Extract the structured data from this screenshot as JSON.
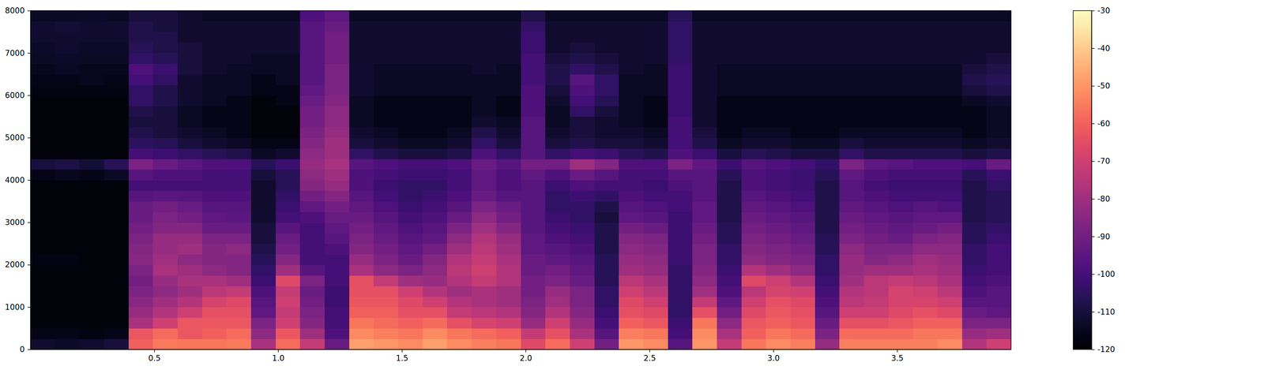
{
  "chart_data": {
    "type": "heatmap",
    "color": "magma",
    "xlim": [
      0,
      3.96
    ],
    "ylim": [
      0,
      8000
    ],
    "xticks": [
      0.5,
      {
        "value": 1,
        "label": "1.0"
      },
      1.5,
      {
        "value": 2,
        "label": "2.0"
      },
      2.5,
      {
        "value": 3,
        "label": "3.0"
      },
      3.5
    ],
    "yticks": [
      0,
      1000,
      2000,
      3000,
      4000,
      5000,
      6000,
      7000,
      8000
    ],
    "colorbar": {
      "range": [
        -120,
        -30
      ],
      "ticks": [
        -120,
        -110,
        -100,
        -90,
        -80,
        -70,
        -60,
        -50,
        -40,
        -30
      ]
    },
    "x": [
      0.0495,
      0.1485,
      0.2475,
      0.3465,
      0.4455,
      0.5445,
      0.6435,
      0.7425,
      0.8415,
      0.9405,
      1.0395,
      1.1385,
      1.2375,
      1.3365,
      1.4355,
      1.5345,
      1.6335,
      1.7325,
      1.8315,
      1.9305,
      2.0295,
      2.1285,
      2.2275,
      2.3265,
      2.4255,
      2.5245,
      2.6235,
      2.7225,
      2.8215,
      2.9205,
      3.0195,
      3.1185,
      3.2175,
      3.3165,
      3.4155,
      3.5145,
      3.6135,
      3.7125,
      3.8115,
      3.9105
    ],
    "y": [
      125,
      375,
      625,
      875,
      1125,
      1375,
      1625,
      1875,
      2125,
      2375,
      2625,
      2875,
      3125,
      3375,
      3625,
      3875,
      4125,
      4375,
      4625,
      4875,
      5125,
      5375,
      5625,
      5875,
      6125,
      6375,
      6625,
      6875,
      7125,
      7375,
      7625,
      7875
    ],
    "z": [
      [
        -112,
        -116,
        -118,
        -118,
        -118,
        -118,
        -118,
        -118,
        -117,
        -118,
        -118,
        -118,
        -118,
        -118,
        -118,
        -118,
        -116,
        -110,
        -118,
        -118,
        -118,
        -118,
        -118,
        -118,
        -117,
        -116,
        -115,
        -114,
        -113,
        -112,
        -112,
        -114
      ],
      [
        -113,
        -116,
        -118,
        -118,
        -118,
        -118,
        -118,
        -118,
        -117,
        -118,
        -118,
        -118,
        -118,
        -118,
        -118,
        -118,
        -115,
        -109,
        -118,
        -118,
        -118,
        -118,
        -118,
        -118,
        -117,
        -116,
        -114,
        -113,
        -112,
        -112,
        -111,
        -114
      ],
      [
        -112,
        -117,
        -118,
        -118,
        -118,
        -118,
        -118,
        -118,
        -118,
        -118,
        -118,
        -118,
        -118,
        -118,
        -118,
        -118,
        -116,
        -111,
        -118,
        -118,
        -118,
        -118,
        -118,
        -118,
        -117,
        -115,
        -115,
        -114,
        -113,
        -112,
        -112,
        -113
      ],
      [
        -110,
        -116,
        -118,
        -118,
        -118,
        -118,
        -118,
        -118,
        -118,
        -118,
        -118,
        -118,
        -118,
        -118,
        -118,
        -118,
        -114,
        -106,
        -118,
        -118,
        -118,
        -118,
        -118,
        -118,
        -117,
        -116,
        -115,
        -114,
        -113,
        -112,
        -112,
        -114
      ],
      [
        -60,
        -62,
        -78,
        -82,
        -85,
        -88,
        -90,
        -88,
        -85,
        -86,
        -88,
        -90,
        -92,
        -92,
        -96,
        -100,
        -96,
        -88,
        -100,
        -105,
        -108,
        -110,
        -108,
        -104,
        -104,
        -100,
        -98,
        -104,
        -106,
        -108,
        -108,
        -110
      ],
      [
        -55,
        -58,
        -70,
        -76,
        -80,
        -84,
        -82,
        -78,
        -80,
        -82,
        -82,
        -86,
        -88,
        -90,
        -95,
        -100,
        -98,
        -92,
        -102,
        -106,
        -110,
        -110,
        -110,
        -108,
        -108,
        -104,
        -102,
        -106,
        -108,
        -108,
        -110,
        -110
      ],
      [
        -56,
        -62,
        -62,
        -70,
        -76,
        -80,
        -78,
        -80,
        -84,
        -80,
        -82,
        -86,
        -90,
        -92,
        -96,
        -100,
        -98,
        -95,
        -104,
        -110,
        -112,
        -114,
        -114,
        -112,
        -112,
        -112,
        -110,
        -110,
        -110,
        -112,
        -112,
        -112
      ],
      [
        -56,
        -60,
        -62,
        -64,
        -68,
        -74,
        -78,
        -84,
        -86,
        -86,
        -88,
        -92,
        -94,
        -96,
        -98,
        -100,
        -100,
        -98,
        -106,
        -112,
        -114,
        -116,
        -116,
        -114,
        -114,
        -114,
        -112,
        -112,
        -112,
        -112,
        -112,
        -114
      ],
      [
        -55,
        -58,
        -62,
        -64,
        -66,
        -72,
        -80,
        -86,
        -86,
        -84,
        -88,
        -92,
        -95,
        -96,
        -98,
        -100,
        -100,
        -98,
        -108,
        -114,
        -116,
        -116,
        -116,
        -116,
        -114,
        -114,
        -114,
        -112,
        -112,
        -112,
        -112,
        -114
      ],
      [
        -78,
        -84,
        -88,
        -94,
        -96,
        -98,
        -102,
        -104,
        -106,
        -108,
        -110,
        -110,
        -112,
        -112,
        -112,
        -112,
        -110,
        -106,
        -114,
        -116,
        -118,
        -118,
        -118,
        -118,
        -116,
        -116,
        -114,
        -114,
        -112,
        -112,
        -112,
        -114
      ],
      [
        -58,
        -62,
        -70,
        -72,
        -70,
        -72,
        -66,
        -80,
        -86,
        -90,
        -92,
        -96,
        -100,
        -102,
        -104,
        -106,
        -106,
        -102,
        -112,
        -116,
        -118,
        -118,
        -118,
        -116,
        -116,
        -114,
        -114,
        -114,
        -112,
        -112,
        -112,
        -114
      ],
      [
        -72,
        -80,
        -86,
        -88,
        -90,
        -92,
        -88,
        -96,
        -100,
        -100,
        -100,
        -100,
        -98,
        -94,
        -90,
        -86,
        -84,
        -82,
        -84,
        -86,
        -88,
        -90,
        -90,
        -92,
        -94,
        -96,
        -96,
        -96,
        -96,
        -96,
        -96,
        -98
      ],
      [
        -92,
        -98,
        -100,
        -100,
        -102,
        -102,
        -100,
        -100,
        -100,
        -98,
        -96,
        -94,
        -92,
        -90,
        -86,
        -82,
        -80,
        -78,
        -80,
        -80,
        -82,
        -84,
        -84,
        -86,
        -88,
        -88,
        -88,
        -90,
        -90,
        -90,
        -92,
        -94
      ],
      [
        -48,
        -52,
        -56,
        -60,
        -62,
        -64,
        -64,
        -78,
        -82,
        -86,
        -88,
        -90,
        -92,
        -94,
        -96,
        -98,
        -98,
        -96,
        -104,
        -110,
        -112,
        -114,
        -114,
        -114,
        -112,
        -112,
        -112,
        -112,
        -112,
        -112,
        -112,
        -114
      ],
      [
        -50,
        -54,
        -58,
        -60,
        -62,
        -64,
        -72,
        -84,
        -88,
        -90,
        -92,
        -94,
        -96,
        -98,
        -100,
        -102,
        -100,
        -98,
        -108,
        -112,
        -114,
        -116,
        -116,
        -116,
        -114,
        -114,
        -114,
        -112,
        -112,
        -112,
        -112,
        -114
      ],
      [
        -52,
        -56,
        -60,
        -64,
        -66,
        -70,
        -80,
        -88,
        -92,
        -94,
        -96,
        -98,
        -100,
        -102,
        -104,
        -104,
        -102,
        -100,
        -110,
        -114,
        -116,
        -116,
        -116,
        -116,
        -114,
        -114,
        -114,
        -112,
        -112,
        -112,
        -112,
        -114
      ],
      [
        -48,
        -52,
        -58,
        -64,
        -70,
        -76,
        -82,
        -84,
        -86,
        -90,
        -94,
        -96,
        -98,
        -100,
        -102,
        -104,
        -102,
        -100,
        -110,
        -114,
        -116,
        -116,
        -116,
        -116,
        -114,
        -114,
        -114,
        -112,
        -112,
        -112,
        -112,
        -114
      ],
      [
        -52,
        -56,
        -64,
        -72,
        -76,
        -80,
        -76,
        -74,
        -76,
        -80,
        -84,
        -88,
        -92,
        -96,
        -98,
        -100,
        -100,
        -98,
        -108,
        -112,
        -114,
        -116,
        -116,
        -116,
        -114,
        -114,
        -114,
        -112,
        -112,
        -112,
        -112,
        -114
      ],
      [
        -54,
        -58,
        -68,
        -74,
        -78,
        -78,
        -72,
        -70,
        -72,
        -74,
        -76,
        -80,
        -84,
        -88,
        -92,
        -94,
        -94,
        -92,
        -98,
        -104,
        -108,
        -112,
        -114,
        -114,
        -114,
        -114,
        -112,
        -112,
        -112,
        -112,
        -112,
        -114
      ],
      [
        -56,
        -60,
        -70,
        -76,
        -80,
        -80,
        -76,
        -76,
        -78,
        -80,
        -82,
        -86,
        -90,
        -92,
        -96,
        -98,
        -98,
        -96,
        -104,
        -110,
        -112,
        -114,
        -116,
        -116,
        -114,
        -114,
        -114,
        -112,
        -112,
        -112,
        -112,
        -114
      ],
      [
        -66,
        -72,
        -82,
        -86,
        -88,
        -90,
        -90,
        -92,
        -92,
        -94,
        -94,
        -96,
        -96,
        -96,
        -96,
        -96,
        -94,
        -90,
        -96,
        -96,
        -96,
        -96,
        -98,
        -98,
        -98,
        -100,
        -100,
        -100,
        -102,
        -102,
        -104,
        -108
      ],
      [
        -58,
        -64,
        -70,
        -76,
        -80,
        -82,
        -88,
        -90,
        -94,
        -96,
        -98,
        -100,
        -102,
        -104,
        -104,
        -102,
        -98,
        -90,
        -104,
        -110,
        -112,
        -114,
        -114,
        -112,
        -110,
        -108,
        -108,
        -110,
        -112,
        -112,
        -112,
        -114
      ],
      [
        -70,
        -78,
        -82,
        -86,
        -88,
        -88,
        -92,
        -94,
        -96,
        -98,
        -100,
        -102,
        -104,
        -104,
        -102,
        -98,
        -92,
        -80,
        -100,
        -108,
        -110,
        -110,
        -104,
        -100,
        -98,
        -96,
        -104,
        -108,
        -110,
        -112,
        -112,
        -114
      ],
      [
        -90,
        -96,
        -100,
        -102,
        -104,
        -104,
        -106,
        -106,
        -106,
        -108,
        -108,
        -108,
        -110,
        -108,
        -104,
        -100,
        -96,
        -86,
        -102,
        -110,
        -112,
        -112,
        -110,
        -106,
        -104,
        -104,
        -108,
        -110,
        -112,
        -112,
        -112,
        -114
      ],
      [
        -50,
        -54,
        -60,
        -64,
        -66,
        -70,
        -74,
        -80,
        -82,
        -84,
        -86,
        -90,
        -94,
        -96,
        -98,
        -100,
        -100,
        -98,
        -106,
        -110,
        -112,
        -114,
        -114,
        -114,
        -114,
        -114,
        -112,
        -112,
        -112,
        -112,
        -112,
        -114
      ],
      [
        -52,
        -56,
        -62,
        -66,
        -70,
        -74,
        -78,
        -82,
        -84,
        -86,
        -88,
        -92,
        -96,
        -98,
        -100,
        -102,
        -100,
        -98,
        -108,
        -112,
        -114,
        -116,
        -116,
        -116,
        -114,
        -114,
        -114,
        -112,
        -112,
        -112,
        -112,
        -114
      ],
      [
        -96,
        -100,
        -102,
        -104,
        -104,
        -104,
        -104,
        -104,
        -102,
        -102,
        -102,
        -102,
        -102,
        -100,
        -100,
        -98,
        -96,
        -88,
        -98,
        -100,
        -100,
        -100,
        -102,
        -102,
        -102,
        -102,
        -102,
        -104,
        -104,
        -104,
        -104,
        -106
      ],
      [
        -50,
        -52,
        -56,
        -64,
        -72,
        -80,
        -84,
        -86,
        -88,
        -88,
        -90,
        -92,
        -94,
        -94,
        -96,
        -96,
        -96,
        -94,
        -102,
        -108,
        -110,
        -112,
        -112,
        -112,
        -112,
        -112,
        -112,
        -112,
        -112,
        -112,
        -112,
        -114
      ],
      [
        -72,
        -78,
        -84,
        -90,
        -94,
        -98,
        -100,
        -102,
        -104,
        -104,
        -106,
        -106,
        -108,
        -108,
        -108,
        -108,
        -106,
        -102,
        -110,
        -114,
        -116,
        -116,
        -116,
        -116,
        -114,
        -114,
        -114,
        -112,
        -112,
        -112,
        -112,
        -114
      ],
      [
        -56,
        -60,
        -62,
        -66,
        -70,
        -74,
        -66,
        -76,
        -84,
        -86,
        -88,
        -90,
        -92,
        -94,
        -96,
        -98,
        -98,
        -96,
        -106,
        -112,
        -114,
        -116,
        -116,
        -116,
        -114,
        -114,
        -114,
        -112,
        -112,
        -112,
        -112,
        -114
      ],
      [
        -52,
        -56,
        -60,
        -62,
        -64,
        -68,
        -70,
        -80,
        -86,
        -88,
        -90,
        -92,
        -94,
        -96,
        -98,
        -100,
        -100,
        -98,
        -108,
        -112,
        -114,
        -116,
        -116,
        -116,
        -114,
        -114,
        -114,
        -112,
        -112,
        -112,
        -112,
        -114
      ],
      [
        -54,
        -58,
        -62,
        -64,
        -66,
        -70,
        -76,
        -84,
        -88,
        -90,
        -92,
        -94,
        -96,
        -98,
        -100,
        -102,
        -102,
        -100,
        -110,
        -114,
        -116,
        -116,
        -116,
        -116,
        -114,
        -114,
        -114,
        -112,
        -112,
        -112,
        -112,
        -114
      ],
      [
        -82,
        -88,
        -92,
        -96,
        -98,
        -100,
        -102,
        -104,
        -104,
        -106,
        -106,
        -108,
        -108,
        -108,
        -108,
        -108,
        -106,
        -104,
        -110,
        -114,
        -116,
        -116,
        -116,
        -116,
        -114,
        -114,
        -114,
        -112,
        -112,
        -112,
        -112,
        -114
      ],
      [
        -54,
        -58,
        -64,
        -70,
        -74,
        -76,
        -80,
        -82,
        -82,
        -84,
        -88,
        -90,
        -92,
        -94,
        -96,
        -96,
        -94,
        -88,
        -104,
        -110,
        -114,
        -116,
        -116,
        -116,
        -114,
        -114,
        -114,
        -112,
        -112,
        -112,
        -112,
        -114
      ],
      [
        -54,
        -58,
        -64,
        -70,
        -72,
        -74,
        -74,
        -80,
        -86,
        -88,
        -90,
        -92,
        -94,
        -96,
        -98,
        -100,
        -98,
        -94,
        -108,
        -112,
        -114,
        -116,
        -116,
        -116,
        -114,
        -114,
        -114,
        -112,
        -112,
        -112,
        -112,
        -114
      ],
      [
        -54,
        -58,
        -62,
        -66,
        -68,
        -68,
        -72,
        -80,
        -84,
        -88,
        -92,
        -94,
        -96,
        -98,
        -100,
        -102,
        -100,
        -96,
        -108,
        -112,
        -114,
        -116,
        -116,
        -116,
        -114,
        -114,
        -114,
        -112,
        -112,
        -112,
        -112,
        -114
      ],
      [
        -54,
        -56,
        -60,
        -64,
        -68,
        -70,
        -74,
        -78,
        -80,
        -84,
        -88,
        -92,
        -94,
        -96,
        -100,
        -102,
        -100,
        -98,
        -108,
        -112,
        -114,
        -116,
        -116,
        -116,
        -114,
        -114,
        -114,
        -112,
        -112,
        -112,
        -112,
        -114
      ],
      [
        -52,
        -56,
        -60,
        -66,
        -70,
        -74,
        -78,
        -80,
        -82,
        -84,
        -86,
        -90,
        -94,
        -98,
        -100,
        -102,
        -100,
        -98,
        -108,
        -112,
        -114,
        -116,
        -116,
        -116,
        -114,
        -114,
        -114,
        -112,
        -112,
        -112,
        -112,
        -114
      ],
      [
        -76,
        -82,
        -88,
        -92,
        -96,
        -98,
        -100,
        -102,
        -104,
        -104,
        -106,
        -106,
        -108,
        -108,
        -108,
        -108,
        -106,
        -100,
        -110,
        -114,
        -116,
        -116,
        -116,
        -114,
        -110,
        -108,
        -110,
        -112,
        -112,
        -112,
        -112,
        -114
      ],
      [
        -70,
        -80,
        -88,
        -94,
        -96,
        -96,
        -98,
        -100,
        -100,
        -100,
        -102,
        -104,
        -106,
        -106,
        -106,
        -104,
        -102,
        -92,
        -108,
        -112,
        -114,
        -114,
        -114,
        -112,
        -108,
        -106,
        -108,
        -110,
        -112,
        -112,
        -112,
        -114
      ]
    ]
  }
}
